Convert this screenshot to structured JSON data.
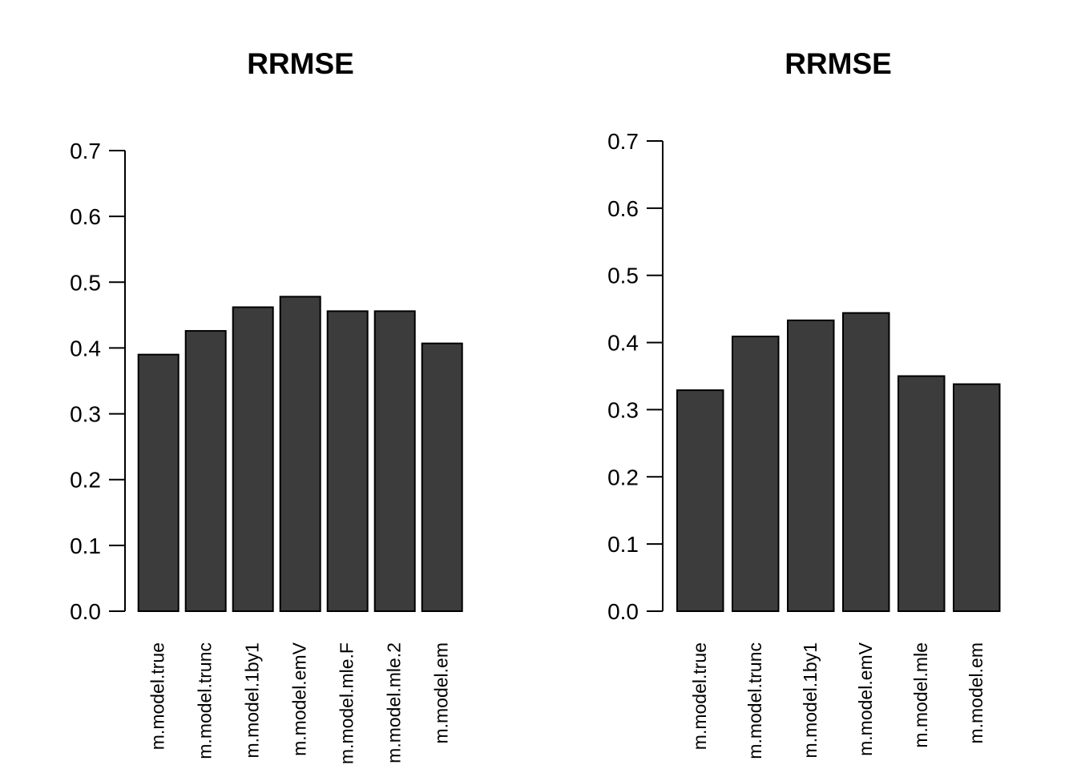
{
  "canvas": {
    "background": "#ffffff"
  },
  "chart_data": [
    {
      "type": "bar",
      "title": "RRMSE",
      "categories": [
        "m.model.true",
        "m.model.trunc",
        "m.model.1by1",
        "m.model.emV",
        "m.model.mle.F",
        "m.model.mle.2",
        "m.model.em"
      ],
      "values": [
        0.39,
        0.426,
        0.462,
        0.478,
        0.456,
        0.456,
        0.407
      ],
      "xlabel": "",
      "ylabel": "",
      "ylim": [
        0,
        0.7
      ],
      "ytick_step": 0.1,
      "ytick_labels": [
        "0.0",
        "0.1",
        "0.2",
        "0.3",
        "0.4",
        "0.5",
        "0.6",
        "0.7"
      ],
      "grid": false,
      "legend": false,
      "bar_fill": "#3c3c3c",
      "bar_stroke": "#000000",
      "x_labels_orientation": "vertical"
    },
    {
      "type": "bar",
      "title": "RRMSE",
      "categories": [
        "m.model.true",
        "m.model.trunc",
        "m.model.1by1",
        "m.model.emV",
        "m.model.mle",
        "m.model.em"
      ],
      "values": [
        0.329,
        0.409,
        0.433,
        0.444,
        0.35,
        0.338
      ],
      "xlabel": "",
      "ylabel": "",
      "ylim": [
        0,
        0.7
      ],
      "ytick_step": 0.1,
      "ytick_labels": [
        "0.0",
        "0.1",
        "0.2",
        "0.3",
        "0.4",
        "0.5",
        "0.6",
        "0.7"
      ],
      "grid": false,
      "legend": false,
      "bar_fill": "#3c3c3c",
      "bar_stroke": "#000000",
      "x_labels_orientation": "vertical"
    }
  ]
}
